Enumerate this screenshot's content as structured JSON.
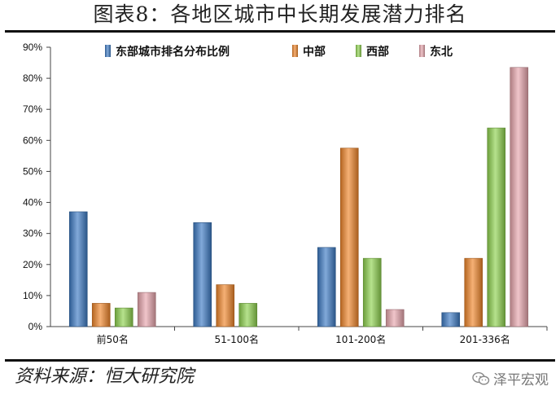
{
  "title": "图表8：各地区城市中长期发展潜力排名",
  "source": "资料来源：恒大研究院",
  "watermark": "泽平宏观",
  "colors": {
    "东部城市排名分布比例": "#3d7bc4",
    "中部": "#f0862b",
    "西部": "#8fd24f",
    "东北": "#e8a6ad"
  },
  "icons": {
    "watermark": "wechat-icon"
  },
  "chart_data": {
    "type": "bar",
    "categories": [
      "前50名",
      "51-100名",
      "101-200名",
      "201-336名"
    ],
    "series": [
      {
        "name": "东部城市排名分布比例",
        "values": [
          37,
          33.5,
          25.5,
          4.5
        ]
      },
      {
        "name": "中部",
        "values": [
          7.5,
          13.5,
          57.5,
          22
        ]
      },
      {
        "name": "西部",
        "values": [
          6,
          7.5,
          22,
          64
        ]
      },
      {
        "name": "东北",
        "values": [
          11,
          0,
          5.5,
          83.5
        ]
      }
    ],
    "ylim": [
      0,
      90
    ],
    "yticks": [
      "0%",
      "10%",
      "20%",
      "30%",
      "40%",
      "50%",
      "60%",
      "70%",
      "80%",
      "90%"
    ],
    "legend": "top-center",
    "grid": false
  }
}
